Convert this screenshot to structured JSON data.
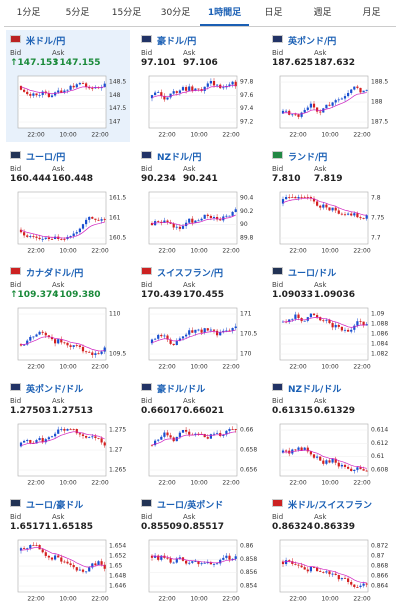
{
  "tabs": [
    "1分足",
    "5分足",
    "15分足",
    "30分足",
    "1時間足",
    "日足",
    "週足",
    "月足"
  ],
  "active_tab": 4,
  "bid_label": "Bid",
  "ask_label": "Ask",
  "xticks": [
    "22:00",
    "10:00",
    "22:00"
  ],
  "tiles": [
    {
      "name": "米ドル/円",
      "bid": "↑147.153",
      "ask": "↑147.155",
      "yticks": [
        "148.5",
        "148",
        "147.5",
        "147"
      ]
    },
    {
      "name": "豪ドル/円",
      "bid": "97.101",
      "ask": "97.106",
      "yticks": [
        "97.8",
        "97.6",
        "97.4",
        "97.2"
      ]
    },
    {
      "name": "英ポンド/円",
      "bid": "187.625",
      "ask": "187.632",
      "yticks": [
        "188.5",
        "188",
        "187.5"
      ]
    },
    {
      "name": "ユーロ/円",
      "bid": "160.444",
      "ask": "160.448",
      "yticks": [
        "161.5",
        "161",
        "160.5"
      ]
    },
    {
      "name": "NZドル/円",
      "bid": "90.234",
      "ask": "90.241",
      "yticks": [
        "90.4",
        "90.2",
        "90",
        "89.8"
      ]
    },
    {
      "name": "ランド/円",
      "bid": "7.810",
      "ask": "7.819",
      "yticks": [
        "7.8",
        "7.75",
        "7.7"
      ]
    },
    {
      "name": "カナダドル/円",
      "bid": "↑109.374",
      "ask": "↑109.380",
      "yticks": [
        "110",
        "109.5"
      ]
    },
    {
      "name": "スイスフラン/円",
      "bid": "170.439",
      "ask": "170.455",
      "yticks": [
        "171",
        "170.5",
        "170"
      ]
    },
    {
      "name": "ユーロ/ドル",
      "bid": "1.09033",
      "ask": "1.09036",
      "yticks": [
        "1.09",
        "1.088",
        "1.086",
        "1.084",
        "1.082"
      ]
    },
    {
      "name": "英ポンド/ドル",
      "bid": "1.27503",
      "ask": "1.27513",
      "yticks": [
        "1.275",
        "1.27",
        "1.265"
      ]
    },
    {
      "name": "豪ドル/ドル",
      "bid": "0.66017",
      "ask": "0.66021",
      "yticks": [
        "0.66",
        "0.658",
        "0.656"
      ]
    },
    {
      "name": "NZドル/ドル",
      "bid": "0.61315",
      "ask": "0.61329",
      "yticks": [
        "0.614",
        "0.612",
        "0.61",
        "0.608"
      ]
    },
    {
      "name": "ユーロ/豪ドル",
      "bid": "1.65171",
      "ask": "1.65185",
      "yticks": [
        "1.654",
        "1.652",
        "1.65",
        "1.648",
        "1.646"
      ]
    },
    {
      "name": "ユーロ/英ポンド",
      "bid": "0.85509",
      "ask": "0.85517",
      "yticks": [
        "0.86",
        "0.858",
        "0.856",
        "0.854"
      ]
    },
    {
      "name": "米ドル/スイスフラン",
      "bid": "0.86324",
      "ask": "0.86339",
      "yticks": [
        "0.872",
        "0.87",
        "0.868",
        "0.866",
        "0.864"
      ]
    }
  ]
}
